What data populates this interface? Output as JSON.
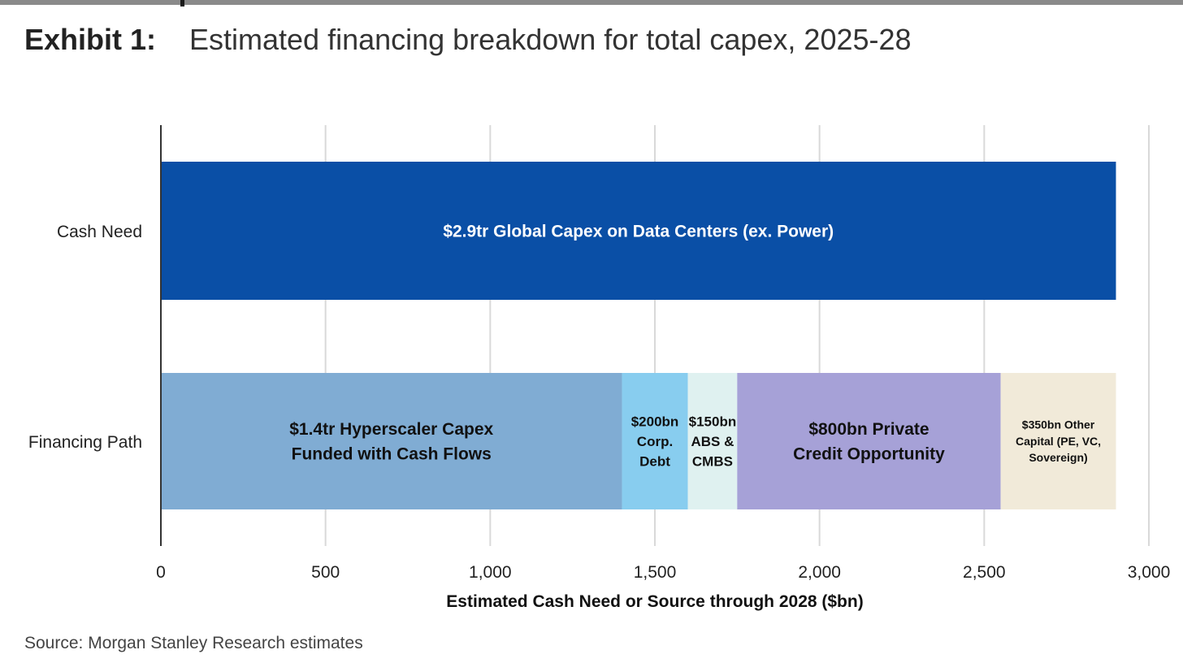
{
  "header": {
    "exhibit_label": "Exhibit 1:",
    "title": "Estimated financing breakdown for total capex, 2025-28"
  },
  "footer": {
    "source": "Source: Morgan Stanley Research estimates"
  },
  "chart_data": {
    "type": "bar",
    "orientation": "horizontal",
    "stacked": true,
    "categories": [
      "Cash Need",
      "Financing Path"
    ],
    "xlabel": "Estimated Cash Need or Source through 2028 ($bn)",
    "ylabel": "",
    "xlim": [
      0,
      3000
    ],
    "x_ticks": [
      0,
      500,
      1000,
      1500,
      2000,
      2500,
      3000
    ],
    "x_tick_labels": [
      "0",
      "500",
      "1,000",
      "1,500",
      "2,000",
      "2,500",
      "3,000"
    ],
    "grid": "vertical",
    "segments": [
      {
        "category": "Cash Need",
        "value": 2900,
        "label": [
          "$2.9tr Global Capex on Data Centers (ex. Power)"
        ],
        "color": "#0a4fa6",
        "text_color": "#ffffff"
      },
      {
        "category": "Financing Path",
        "value": 1400,
        "label": [
          "$1.4tr Hyperscaler Capex",
          "Funded with Cash Flows"
        ],
        "color": "#80acd3",
        "text_color": "#111111"
      },
      {
        "category": "Financing Path",
        "value": 200,
        "label": [
          "$200bn",
          "Corp.",
          "Debt"
        ],
        "color": "#88cdef",
        "text_color": "#111111"
      },
      {
        "category": "Financing Path",
        "value": 150,
        "label": [
          "$150bn",
          "ABS &",
          "CMBS"
        ],
        "color": "#dff1f0",
        "text_color": "#111111"
      },
      {
        "category": "Financing Path",
        "value": 800,
        "label": [
          "$800bn Private",
          "Credit Opportunity"
        ],
        "color": "#a6a1d7",
        "text_color": "#111111"
      },
      {
        "category": "Financing Path",
        "value": 350,
        "label": [
          "$350bn Other",
          "Capital (PE, VC,",
          "Sovereign)"
        ],
        "color": "#f1ead9",
        "text_color": "#111111"
      }
    ]
  }
}
